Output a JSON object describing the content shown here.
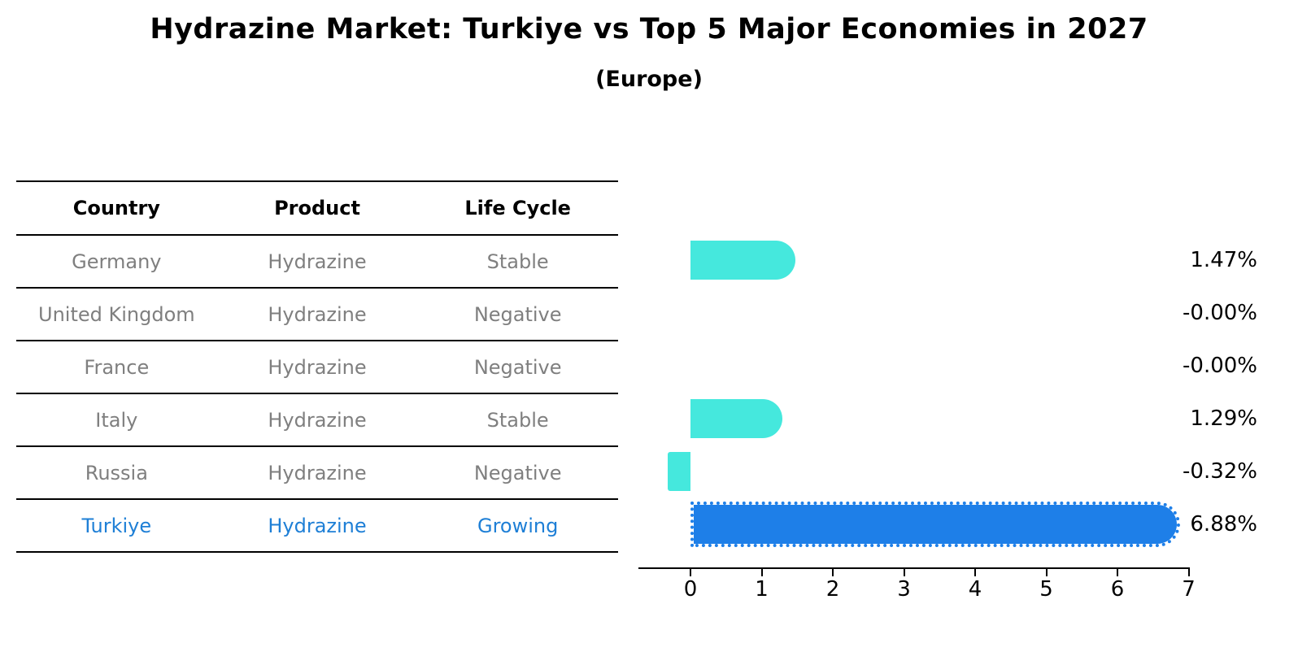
{
  "title": "Hydrazine Market: Turkiye vs Top 5 Major Economies in 2027",
  "subtitle": "(Europe)",
  "table": {
    "headers": [
      "Country",
      "Product",
      "Life Cycle"
    ],
    "rows": [
      {
        "country": "Germany",
        "product": "Hydrazine",
        "life_cycle": "Stable",
        "highlight": false
      },
      {
        "country": "United Kingdom",
        "product": "Hydrazine",
        "life_cycle": "Negative",
        "highlight": false
      },
      {
        "country": "France",
        "product": "Hydrazine",
        "life_cycle": "Negative",
        "highlight": false
      },
      {
        "country": "Italy",
        "product": "Hydrazine",
        "life_cycle": "Stable",
        "highlight": false
      },
      {
        "country": "Russia",
        "product": "Hydrazine",
        "life_cycle": "Negative",
        "highlight": false
      },
      {
        "country": "Turkiye",
        "product": "Hydrazine",
        "life_cycle": "Growing",
        "highlight": true
      }
    ]
  },
  "chart_data": {
    "type": "bar",
    "orientation": "horizontal",
    "categories": [
      "Germany",
      "United Kingdom",
      "France",
      "Italy",
      "Russia",
      "Turkiye"
    ],
    "values": [
      1.47,
      -0.0,
      -0.0,
      1.29,
      -0.32,
      6.88
    ],
    "value_labels": [
      "1.47%",
      "-0.00%",
      "-0.00%",
      "1.29%",
      "-0.32%",
      "6.88%"
    ],
    "highlight_index": 5,
    "x_ticks": [
      "0",
      "1",
      "2",
      "3",
      "4",
      "5",
      "6",
      "7"
    ],
    "xlim": [
      -0.75,
      7.05
    ],
    "grid": false,
    "legend": false,
    "colors": {
      "bar_default": "#45e8dd",
      "bar_highlight": "#1e7fe8",
      "highlight_text": "#1e7fd6",
      "table_text": "#7f7f7f",
      "axis": "#000000"
    }
  }
}
